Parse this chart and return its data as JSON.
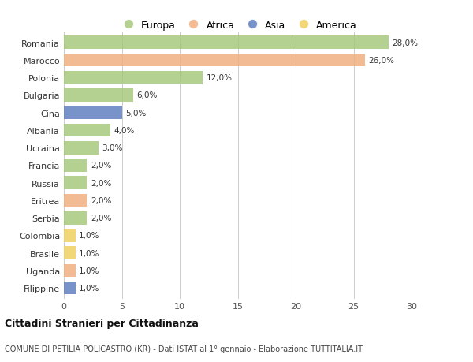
{
  "countries": [
    "Romania",
    "Marocco",
    "Polonia",
    "Bulgaria",
    "Cina",
    "Albania",
    "Ucraina",
    "Francia",
    "Russia",
    "Eritrea",
    "Serbia",
    "Colombia",
    "Brasile",
    "Uganda",
    "Filippine"
  ],
  "values": [
    28.0,
    26.0,
    12.0,
    6.0,
    5.0,
    4.0,
    3.0,
    2.0,
    2.0,
    2.0,
    2.0,
    1.0,
    1.0,
    1.0,
    1.0
  ],
  "continents": [
    "Europa",
    "Africa",
    "Europa",
    "Europa",
    "Asia",
    "Europa",
    "Europa",
    "Europa",
    "Europa",
    "Africa",
    "Europa",
    "America",
    "America",
    "Africa",
    "Asia"
  ],
  "continent_colors": {
    "Europa": "#a8c97f",
    "Africa": "#f0b080",
    "Asia": "#6080c0",
    "America": "#f0d060"
  },
  "legend_order": [
    "Europa",
    "Africa",
    "Asia",
    "America"
  ],
  "labels": [
    "28,0%",
    "26,0%",
    "12,0%",
    "6,0%",
    "5,0%",
    "4,0%",
    "3,0%",
    "2,0%",
    "2,0%",
    "2,0%",
    "2,0%",
    "1,0%",
    "1,0%",
    "1,0%",
    "1,0%"
  ],
  "xlim": [
    0,
    30
  ],
  "xticks": [
    0,
    5,
    10,
    15,
    20,
    25,
    30
  ],
  "title": "Cittadini Stranieri per Cittadinanza",
  "subtitle": "COMUNE DI PETILIA POLICASTRO (KR) - Dati ISTAT al 1° gennaio - Elaborazione TUTTITALIA.IT",
  "background_color": "#ffffff",
  "bar_alpha": 0.85
}
